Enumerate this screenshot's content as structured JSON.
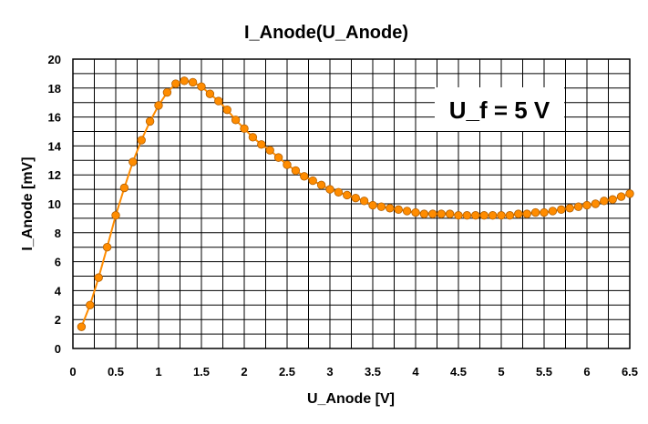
{
  "chart_data": {
    "type": "line",
    "title": "I_Anode(U_Anode)",
    "xlabel": "U_Anode [V]",
    "ylabel": "I_Anode [mV]",
    "xlim": [
      0,
      6.5
    ],
    "ylim": [
      0,
      20
    ],
    "x_ticks": [
      "0",
      "0.5",
      "1",
      "1.5",
      "2",
      "2.5",
      "3",
      "3.5",
      "4",
      "4.5",
      "5",
      "5.5",
      "6",
      "6.5"
    ],
    "y_ticks": [
      "0",
      "2",
      "4",
      "6",
      "8",
      "10",
      "12",
      "14",
      "16",
      "18",
      "20"
    ],
    "grid": true,
    "annotation": "U_f = 5 V",
    "series_color": "#ff8c00",
    "series": [
      {
        "x": [
          0.1,
          0.2,
          0.3,
          0.4,
          0.5,
          0.6,
          0.7,
          0.8,
          0.9,
          1.0,
          1.1,
          1.2,
          1.3,
          1.4,
          1.5,
          1.6,
          1.7,
          1.8,
          1.9,
          2.0,
          2.1,
          2.2,
          2.3,
          2.4,
          2.5,
          2.6,
          2.7,
          2.8,
          2.9,
          3.0,
          3.1,
          3.2,
          3.3,
          3.4,
          3.5,
          3.6,
          3.7,
          3.8,
          3.9,
          4.0,
          4.1,
          4.2,
          4.3,
          4.4,
          4.5,
          4.6,
          4.7,
          4.8,
          4.9,
          5.0,
          5.1,
          5.2,
          5.3,
          5.4,
          5.5,
          5.6,
          5.7,
          5.8,
          5.9,
          6.0,
          6.1,
          6.2,
          6.3,
          6.4,
          6.5
        ],
        "y": [
          1.5,
          3.0,
          4.9,
          7.0,
          9.2,
          11.1,
          12.9,
          14.4,
          15.7,
          16.8,
          17.7,
          18.3,
          18.5,
          18.4,
          18.1,
          17.6,
          17.1,
          16.5,
          15.8,
          15.2,
          14.6,
          14.1,
          13.7,
          13.2,
          12.7,
          12.3,
          11.9,
          11.6,
          11.3,
          11.0,
          10.8,
          10.6,
          10.4,
          10.2,
          9.9,
          9.8,
          9.7,
          9.6,
          9.5,
          9.4,
          9.3,
          9.3,
          9.3,
          9.3,
          9.2,
          9.2,
          9.2,
          9.2,
          9.2,
          9.2,
          9.2,
          9.3,
          9.3,
          9.4,
          9.4,
          9.5,
          9.6,
          9.7,
          9.8,
          9.9,
          10.0,
          10.2,
          10.3,
          10.5,
          10.7
        ]
      }
    ]
  }
}
